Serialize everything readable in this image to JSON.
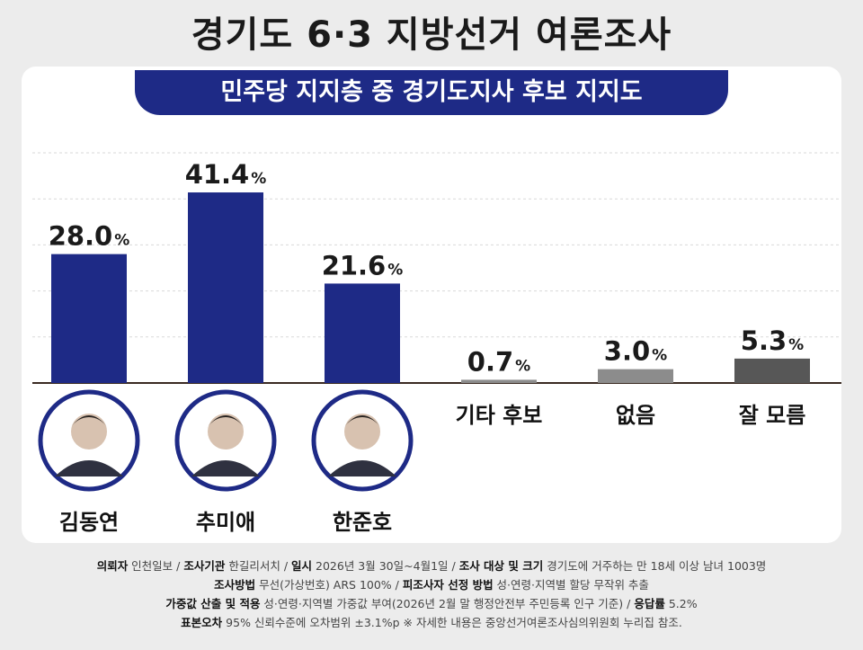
{
  "title": "경기도 6·3 지방선거 여론조사",
  "subtitle": "민주당 지지층 중 경기도지사 후보 지지도",
  "colors": {
    "candidate": "#1e2a86",
    "other": "#8c8c8c",
    "unknown": "#575757",
    "ring": "#1e2a86"
  },
  "chart_data": {
    "type": "bar",
    "title": "민주당 지지층 중 경기도지사 후보 지지도",
    "categories": [
      "김동연",
      "추미애",
      "한준호",
      "기타 후보",
      "없음",
      "잘 모름"
    ],
    "values": [
      28.0,
      41.4,
      21.6,
      0.7,
      3.0,
      5.3
    ],
    "value_labels": [
      "28.0",
      "41.4",
      "21.6",
      "0.7",
      "3.0",
      "5.3"
    ],
    "unit": "%",
    "has_photo": [
      true,
      true,
      true,
      false,
      false,
      false
    ],
    "bar_color_keys": [
      "candidate",
      "candidate",
      "candidate",
      "other",
      "other",
      "unknown"
    ],
    "ylim": [
      0,
      50
    ],
    "grid": true,
    "legend": "none"
  },
  "footer": {
    "row1": [
      {
        "label": "의뢰자",
        "text": "인천일보"
      },
      {
        "label": "조사기관",
        "text": "한길리서치"
      },
      {
        "label": "일시",
        "text": "2026년 3월 30일~4월1일"
      },
      {
        "label": "조사 대상 및 크기",
        "text": "경기도에 거주하는 만 18세 이상 남녀 1003명"
      }
    ],
    "row2": [
      {
        "label": "조사방법",
        "text": "무선(가상번호) ARS 100%"
      },
      {
        "label": "피조사자 선정 방법",
        "text": "성·연령·지역별 할당 무작위 추출"
      }
    ],
    "row3": [
      {
        "label": "가중값 산출 및 적용",
        "text": "성·연령·지역별 가중값 부여(2026년 2월 말 행정안전부 주민등록 인구 기준)"
      },
      {
        "label": "응답률",
        "text": "5.2%"
      }
    ],
    "row4": [
      {
        "label": "표본오차",
        "text": "95% 신뢰수준에 오차범위 ±3.1%p ※ 자세한 내용은 중앙선거여론조사심의위원회 누리집 참조."
      }
    ]
  }
}
